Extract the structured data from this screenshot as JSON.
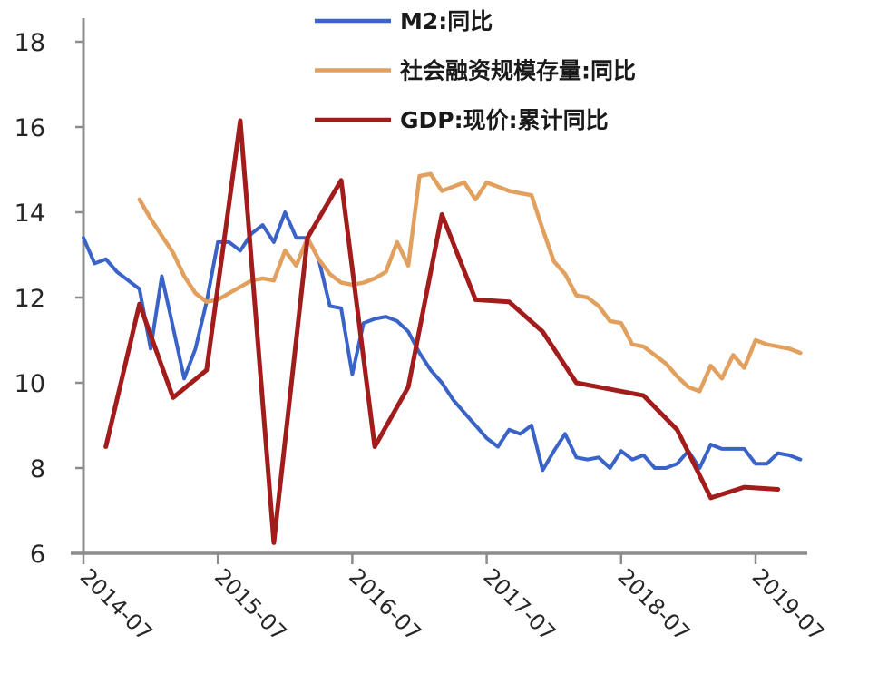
{
  "chart_data": {
    "type": "line",
    "title": "",
    "xlabel": "",
    "ylabel": "",
    "ylim": [
      6,
      18
    ],
    "yticks": [
      6,
      8,
      10,
      12,
      14,
      16,
      18
    ],
    "x_axis_unit": "month",
    "x_start_label": "2014-07",
    "xticks": [
      "2014-07",
      "2015-07",
      "2016-07",
      "2017-07",
      "2018-07",
      "2019-07"
    ],
    "xtick_month_interval": 12,
    "grid": false,
    "legend_position": "top-center",
    "axis_color": "#8c8c8c",
    "tick_label_color": "#262626",
    "series": [
      {
        "id": "m2",
        "name": "M2:同比",
        "color": "#3a63c8",
        "stroke_width": 4,
        "start_month": 0,
        "month_step": 1,
        "values": [
          13.4,
          12.8,
          12.9,
          12.6,
          12.4,
          12.2,
          10.8,
          12.5,
          11.3,
          10.1,
          10.8,
          11.9,
          13.3,
          13.3,
          13.1,
          13.5,
          13.7,
          13.3,
          14.0,
          13.4,
          13.4,
          12.9,
          11.8,
          11.75,
          10.2,
          11.4,
          11.5,
          11.55,
          11.45,
          11.2,
          10.7,
          10.3,
          10.0,
          9.6,
          9.3,
          9.0,
          8.7,
          8.5,
          8.9,
          8.8,
          9.0,
          7.95,
          8.4,
          8.8,
          8.25,
          8.2,
          8.25,
          8.0,
          8.4,
          8.2,
          8.3,
          8.0,
          8.0,
          8.1,
          8.4,
          8.0,
          8.55,
          8.45,
          8.45,
          8.45,
          8.1,
          8.1,
          8.35,
          8.3,
          8.2
        ]
      },
      {
        "id": "tsf",
        "name": "社会融资规模存量:同比",
        "color": "#e2a05e",
        "stroke_width": 4.5,
        "start_month": 5,
        "month_step": 1,
        "values": [
          14.3,
          13.85,
          13.45,
          13.05,
          12.5,
          12.1,
          11.9,
          11.95,
          12.1,
          12.25,
          12.4,
          12.45,
          12.4,
          13.1,
          12.75,
          13.4,
          12.9,
          12.55,
          12.35,
          12.3,
          12.35,
          12.45,
          12.6,
          13.3,
          12.75,
          14.85,
          14.9,
          14.5,
          14.6,
          14.7,
          14.3,
          14.7,
          14.6,
          14.5,
          14.45,
          14.4,
          13.6,
          12.85,
          12.55,
          12.05,
          12.0,
          11.8,
          11.45,
          11.4,
          10.9,
          10.85,
          10.65,
          10.45,
          10.15,
          9.9,
          9.8,
          10.4,
          10.1,
          10.65,
          10.35,
          11.0,
          10.9,
          10.85,
          10.8,
          10.7
        ]
      },
      {
        "id": "gdp",
        "name": "GDP:现价:累计同比",
        "color": "#a21c1c",
        "stroke_width": 5,
        "start_month": 2,
        "month_step": 3,
        "values": [
          8.5,
          11.85,
          9.65,
          10.3,
          16.15,
          6.25,
          13.4,
          14.75,
          8.5,
          9.9,
          13.95,
          11.95,
          11.9,
          11.2,
          10.0,
          9.85,
          9.7,
          8.9,
          7.3,
          7.55,
          7.5
        ]
      }
    ]
  }
}
